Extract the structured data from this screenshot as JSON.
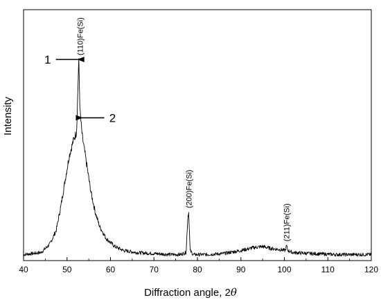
{
  "chart_data": {
    "type": "line",
    "xlabel_main": "Diffraction angle, 2",
    "xlabel_symbol": "θ",
    "ylabel": "Intensity",
    "xlim": [
      40,
      120
    ],
    "ylim": [
      0,
      100
    ],
    "x_ticks": [
      40,
      50,
      60,
      70,
      80,
      90,
      100,
      110,
      120
    ],
    "y_ticks_labeled": false,
    "grid": false,
    "legend": "none",
    "line_color": "#000000",
    "series": [
      {
        "x": [
          40,
          44,
          46,
          47.5,
          48.5,
          49.5,
          50.5,
          51.5,
          52.2,
          52.7,
          53.0,
          53.5,
          54.5,
          55.5,
          56.5,
          57.5,
          59,
          61,
          63,
          66,
          70,
          74,
          76,
          77.4,
          77.8,
          78.0,
          78.3,
          79,
          82,
          86,
          90,
          93,
          95,
          97,
          99,
          100.2,
          100.5,
          100.8,
          102,
          106,
          112,
          120
        ],
        "y": [
          3,
          4,
          8,
          15,
          26,
          39,
          52,
          60,
          64,
          100,
          74,
          62,
          48,
          34,
          24,
          17,
          11,
          7,
          5,
          4,
          3.5,
          3,
          3,
          4,
          22,
          24,
          5,
          3,
          3,
          3.5,
          5,
          6.5,
          7,
          6,
          5.5,
          5,
          7.5,
          5,
          4,
          3.5,
          3,
          3
        ]
      }
    ],
    "annotations": [
      {
        "label": "(110)Fe(Si)",
        "x": 53.0,
        "y": 100,
        "rotation": -90
      },
      {
        "label": "(200)Fe(Si)",
        "x": 78.0,
        "y": 24,
        "rotation": -90
      },
      {
        "label": "(211)Fe(Si)",
        "x": 100.5,
        "y": 7.5,
        "rotation": -90
      }
    ],
    "callouts": [
      {
        "label": "1",
        "points_to_x": 52.7,
        "points_to_y": 100,
        "arrow_from": "left"
      },
      {
        "label": "2",
        "points_to_x": 53.3,
        "points_to_y": 71,
        "arrow_from": "right"
      }
    ]
  }
}
